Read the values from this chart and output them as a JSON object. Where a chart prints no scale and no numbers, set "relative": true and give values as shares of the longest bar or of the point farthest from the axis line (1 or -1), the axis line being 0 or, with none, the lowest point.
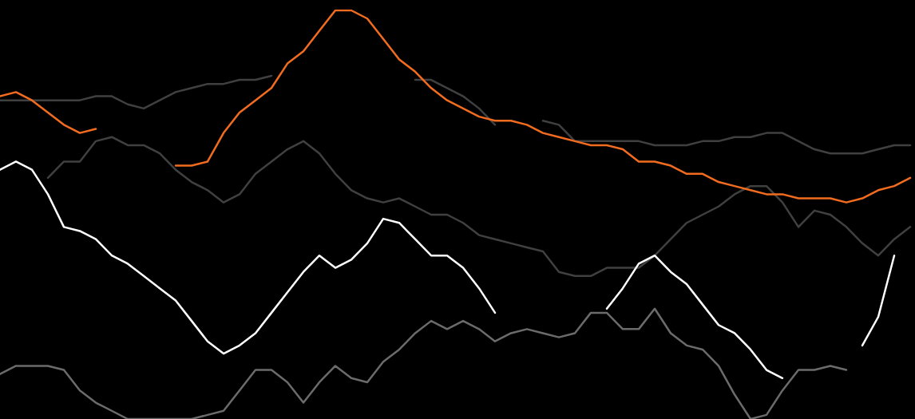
{
  "chart_data": {
    "type": "line",
    "relative": true,
    "marker": "none",
    "line_style": "solid",
    "categories": [
      null,
      null,
      null,
      null,
      null,
      null,
      null,
      null,
      null,
      null,
      null,
      null,
      null,
      null,
      null,
      null,
      null,
      null,
      null,
      null,
      null,
      null,
      null,
      null,
      null,
      null,
      null,
      null,
      null,
      null,
      null,
      null,
      null,
      null,
      null,
      null,
      null,
      null,
      null,
      null,
      null,
      null,
      null,
      null,
      null,
      null,
      null,
      null,
      null,
      null,
      null,
      null,
      null,
      null,
      null,
      null,
      null,
      null
    ],
    "series": [
      {
        "color": "#404040",
        "values": [
          0.78,
          0.78,
          0.78,
          0.78,
          0.78,
          0.78,
          0.79,
          0.79,
          0.77,
          0.76,
          0.78,
          0.8,
          0.81,
          0.82,
          0.82,
          0.83,
          0.83,
          0.84,
          null,
          null,
          null,
          null,
          null,
          null,
          null,
          null,
          0.83,
          0.83,
          0.81,
          0.79,
          0.76,
          0.72,
          null,
          null,
          0.73,
          0.72,
          0.68,
          0.68,
          0.68,
          0.68,
          0.68,
          0.67,
          0.67,
          0.67,
          0.68,
          0.68,
          0.69,
          0.69,
          0.7,
          0.7,
          0.68,
          0.66,
          0.65,
          0.65,
          0.65,
          0.66,
          0.67,
          0.67
        ]
      },
      {
        "color": "#404040",
        "values": [
          null,
          null,
          null,
          0.59,
          0.63,
          0.63,
          0.68,
          0.69,
          0.67,
          0.67,
          0.65,
          0.61,
          0.58,
          0.56,
          0.53,
          0.55,
          0.6,
          0.63,
          0.66,
          0.68,
          0.65,
          0.6,
          0.56,
          0.54,
          0.53,
          0.54,
          0.52,
          0.5,
          0.5,
          0.48,
          0.45,
          0.44,
          0.43,
          0.42,
          0.41,
          0.36,
          0.35,
          0.35,
          0.37,
          0.37,
          0.37,
          0.4,
          0.44,
          0.48,
          0.5,
          0.52,
          0.55,
          0.57,
          0.57,
          0.53,
          0.47,
          0.51,
          0.5,
          0.47,
          0.43,
          0.4,
          0.44,
          0.47
        ]
      },
      {
        "color": "#6b6b6b",
        "values": [
          0.11,
          0.13,
          0.13,
          0.13,
          0.12,
          0.07,
          0.04,
          0.02,
          0,
          0,
          0,
          0,
          0,
          0.01,
          0.02,
          0.07,
          0.12,
          0.12,
          0.09,
          0.04,
          0.09,
          0.13,
          0.1,
          0.09,
          0.14,
          0.17,
          0.21,
          0.24,
          0.22,
          0.24,
          0.22,
          0.19,
          0.21,
          0.22,
          0.21,
          0.2,
          0.21,
          0.26,
          0.26,
          0.22,
          0.22,
          0.27,
          0.21,
          0.18,
          0.17,
          0.13,
          0.06,
          0,
          0.01,
          0.07,
          0.12,
          0.12,
          0.13,
          0.12,
          null,
          null,
          null,
          null
        ]
      },
      {
        "color": "#ffffff",
        "values": [
          0.61,
          0.63,
          0.61,
          0.55,
          0.47,
          0.46,
          0.44,
          0.4,
          0.38,
          0.35,
          0.32,
          0.29,
          0.24,
          0.19,
          0.16,
          0.18,
          0.21,
          0.26,
          0.31,
          0.36,
          0.4,
          0.37,
          0.39,
          0.43,
          0.49,
          0.48,
          0.44,
          0.4,
          0.4,
          0.37,
          0.32,
          0.26,
          null,
          null,
          null,
          null,
          null,
          null,
          0.27,
          0.32,
          0.38,
          0.4,
          0.36,
          0.33,
          0.28,
          0.23,
          0.21,
          0.17,
          0.12,
          0.1,
          null,
          null,
          null,
          null,
          0.18,
          0.25,
          0.4,
          null
        ]
      },
      {
        "color": "#f26c1f",
        "values": [
          0.79,
          0.8,
          0.78,
          0.75,
          0.72,
          0.7,
          0.71,
          null,
          null,
          null,
          null,
          0.62,
          0.62,
          0.63,
          0.7,
          0.75,
          0.78,
          0.81,
          0.87,
          0.9,
          0.95,
          1.0,
          1.0,
          0.98,
          0.93,
          0.88,
          0.85,
          0.81,
          0.78,
          0.76,
          0.74,
          0.73,
          0.73,
          0.72,
          0.7,
          0.69,
          0.68,
          0.67,
          0.67,
          0.66,
          0.63,
          0.63,
          0.62,
          0.6,
          0.6,
          0.58,
          0.57,
          0.56,
          0.55,
          0.55,
          0.54,
          0.54,
          0.54,
          0.53,
          0.54,
          0.56,
          0.57,
          0.59
        ]
      }
    ]
  }
}
